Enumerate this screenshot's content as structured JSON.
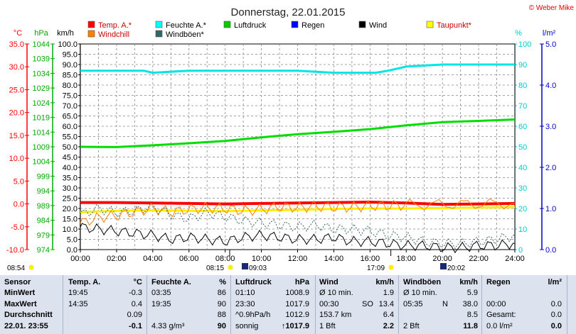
{
  "chart_data": {
    "type": "line",
    "title": "Donnerstag, 22.01.2015",
    "copyright": "© Weber Mike",
    "x_ticks": [
      "00:00",
      "02:00",
      "04:00",
      "06:00",
      "08:00",
      "10:00",
      "12:00",
      "14:00",
      "16:00",
      "18:00",
      "20:00",
      "22:00",
      "24:00"
    ],
    "axes": {
      "temp": {
        "label": "°C",
        "color": "#ff0000",
        "min": -10,
        "max": 35,
        "step": 5
      },
      "pressure": {
        "label": "hPa",
        "color": "#00cc00",
        "min": 974,
        "max": 1044,
        "step": 5
      },
      "wind": {
        "label": "km/h",
        "color": "#000000",
        "min": 0,
        "max": 100,
        "step": 5
      },
      "humidity": {
        "label": "%",
        "color": "#00e5e5",
        "min": 0,
        "max": 100,
        "step": 10
      },
      "rain": {
        "label": "l/m²",
        "color": "#0000cc",
        "min": 0,
        "max": 5,
        "step": 1
      }
    },
    "legend": [
      {
        "name": "Temp. A.*",
        "color": "#ff0000"
      },
      {
        "name": "Feuchte A.*",
        "color": "#00ffff"
      },
      {
        "name": "Luftdruck",
        "color": "#00cc00"
      },
      {
        "name": "Regen",
        "color": "#0000ff"
      },
      {
        "name": "Wind",
        "color": "#000000"
      },
      {
        "name": "Taupunkt*",
        "color": "#ffff00"
      },
      {
        "name": "Windchill",
        "color": "#ff8000"
      },
      {
        "name": "Windböen*",
        "color": "#336666"
      }
    ],
    "series": [
      {
        "name": "Temp. A.*",
        "axis": "temp",
        "color": "#ff0000",
        "width": 4,
        "x": [
          0,
          2,
          4,
          6,
          8,
          10,
          12,
          14,
          16,
          18,
          20,
          22,
          24
        ],
        "values": [
          0.3,
          0.3,
          0.2,
          0.1,
          0.0,
          0.1,
          0.2,
          0.3,
          0.4,
          0.2,
          -0.1,
          0.0,
          0.1
        ]
      },
      {
        "name": "Feuchte A.*",
        "axis": "humidity",
        "color": "#00e5e5",
        "width": 3,
        "x": [
          0,
          2,
          3.5,
          4,
          6,
          8,
          10,
          12,
          14,
          15,
          16.3,
          17,
          18,
          20,
          22,
          24
        ],
        "values": [
          87,
          87,
          87,
          86,
          87,
          87,
          87,
          87,
          86,
          86,
          86,
          87,
          89,
          90,
          90,
          90
        ]
      },
      {
        "name": "Luftdruck",
        "axis": "pressure",
        "color": "#00dd00",
        "width": 3,
        "x": [
          0,
          2,
          4,
          6,
          8,
          10,
          12,
          14,
          16,
          18,
          20,
          22,
          24
        ],
        "values": [
          1009,
          1008.9,
          1009.5,
          1010.2,
          1011,
          1012.2,
          1013.3,
          1014.1,
          1015,
          1016.3,
          1017.4,
          1017.8,
          1018.3
        ]
      },
      {
        "name": "Taupunkt*",
        "axis": "temp",
        "color": "#ffee00",
        "width": 3,
        "x": [
          0,
          2,
          4,
          6,
          8,
          10,
          12,
          14,
          16,
          18,
          20,
          22,
          24
        ],
        "values": [
          -1.8,
          -1.5,
          -1.4,
          -1.5,
          -1.6,
          -1.4,
          -1.3,
          -1.1,
          -1.0,
          -1.0,
          -0.9,
          -0.8,
          -0.7
        ]
      },
      {
        "name": "Windchill",
        "axis": "temp",
        "color": "#ff8000",
        "width": 1,
        "jagged": true,
        "x": [
          0,
          1,
          2,
          3,
          4,
          5,
          6,
          7,
          8,
          9,
          10,
          11,
          12,
          13,
          14,
          15,
          16,
          17,
          18,
          20,
          22,
          24
        ],
        "values": [
          -4.2,
          -3.0,
          -2.5,
          -1.8,
          -1.0,
          -1.8,
          -1.2,
          -0.8,
          -1.0,
          -1.5,
          -1.2,
          -0.6,
          -0.8,
          -0.5,
          -0.7,
          -0.7,
          -0.4,
          -0.4,
          -0.2,
          -0.1,
          0.0,
          0.1
        ]
      },
      {
        "name": "Windböen*",
        "axis": "wind",
        "color": "#336666",
        "width": 1,
        "dashed": true,
        "jagged": true,
        "x": [
          0,
          1,
          2,
          3,
          4,
          5,
          6,
          7,
          8,
          9,
          10,
          11,
          12,
          13,
          14,
          15,
          16,
          17,
          18,
          19,
          20,
          21,
          22,
          23,
          24
        ],
        "values": [
          17,
          20,
          18,
          19,
          21,
          17,
          15,
          18,
          16,
          14,
          13,
          12,
          11,
          12,
          10,
          10,
          9,
          7,
          6,
          4,
          3,
          3,
          4,
          5,
          7
        ]
      },
      {
        "name": "Wind",
        "axis": "wind",
        "color": "#000000",
        "width": 1,
        "jagged": true,
        "x": [
          0,
          1,
          2,
          3,
          4,
          5,
          6,
          7,
          8,
          9,
          10,
          11,
          12,
          13,
          14,
          15,
          16,
          17,
          18,
          19,
          20,
          21,
          22,
          23,
          24
        ],
        "values": [
          11,
          10,
          9,
          8,
          7,
          5,
          6,
          5,
          4,
          6,
          7,
          6,
          5,
          5,
          6,
          4,
          4,
          3,
          2,
          2,
          1,
          1,
          2,
          2,
          3
        ]
      }
    ],
    "sun_markers": {
      "sunrise_time": "08:15",
      "sunset_time": "17:09",
      "moon_rise": "09:03",
      "moon_set": "20:02",
      "left_time": "08:54"
    }
  },
  "table": {
    "headers": {
      "sensor": "Sensor",
      "temp": "Temp. A.",
      "temp_unit": "°C",
      "feuchte": "Feuchte A.",
      "feuchte_unit": "%",
      "luftdruck": "Luftdruck",
      "luftdruck_unit": "hPa",
      "wind": "Wind",
      "wind_unit": "km/h",
      "windboeen": "Windböen",
      "windboeen_unit": "km/h",
      "regen": "Regen",
      "regen_unit": "l/m²"
    },
    "rows": [
      {
        "label": "MinWert",
        "temp_time": "19:45",
        "temp_val": "-0.3",
        "feu_time": "03:35",
        "feu_val": "86",
        "lp_time": "01:10",
        "lp_val": "1008.9",
        "wind_a": "Ø 10 min.",
        "wind_b": "",
        "wind_val": "1.9",
        "wb_a": "Ø 10 min.",
        "wb_val": "5.9",
        "rg_a": "",
        "rg_val": ""
      },
      {
        "label": "MaxWert",
        "temp_time": "14:35",
        "temp_val": "0.4",
        "feu_time": "19:35",
        "feu_val": "90",
        "lp_time": "23:30",
        "lp_val": "1017.9",
        "wind_a": "00:30",
        "wind_b": "SO",
        "wind_val": "13.4",
        "wb_a": "05:35",
        "wb_b": "N",
        "wb_val": "38.0",
        "rg_a": "00:00",
        "rg_val": "0.0"
      },
      {
        "label": "Durchschnitt",
        "temp_time": "",
        "temp_val": "0.09",
        "feu_time": "",
        "feu_val": "88",
        "lp_time": "^0.9hPa/h",
        "lp_val": "1012.9",
        "wind_a": "153.7 km",
        "wind_b": "",
        "wind_val": "6.4",
        "wb_a": "",
        "wb_val": "8.5",
        "rg_a": "Gesamt:",
        "rg_val": "0.0"
      },
      {
        "label": "22.01. 23:55",
        "temp_time": "",
        "temp_val": "-0.1",
        "feu_time": "4.33 g/m³",
        "feu_val": "90",
        "lp_time": "sonnig",
        "lp_val": "↑1017.9",
        "wind_a": "1 Bft",
        "wind_b": "",
        "wind_val": "2.2",
        "wb_a": "2 Bft",
        "wb_val": "11.8",
        "rg_a": "0.0 l/m²",
        "rg_val": "0.0"
      }
    ]
  }
}
